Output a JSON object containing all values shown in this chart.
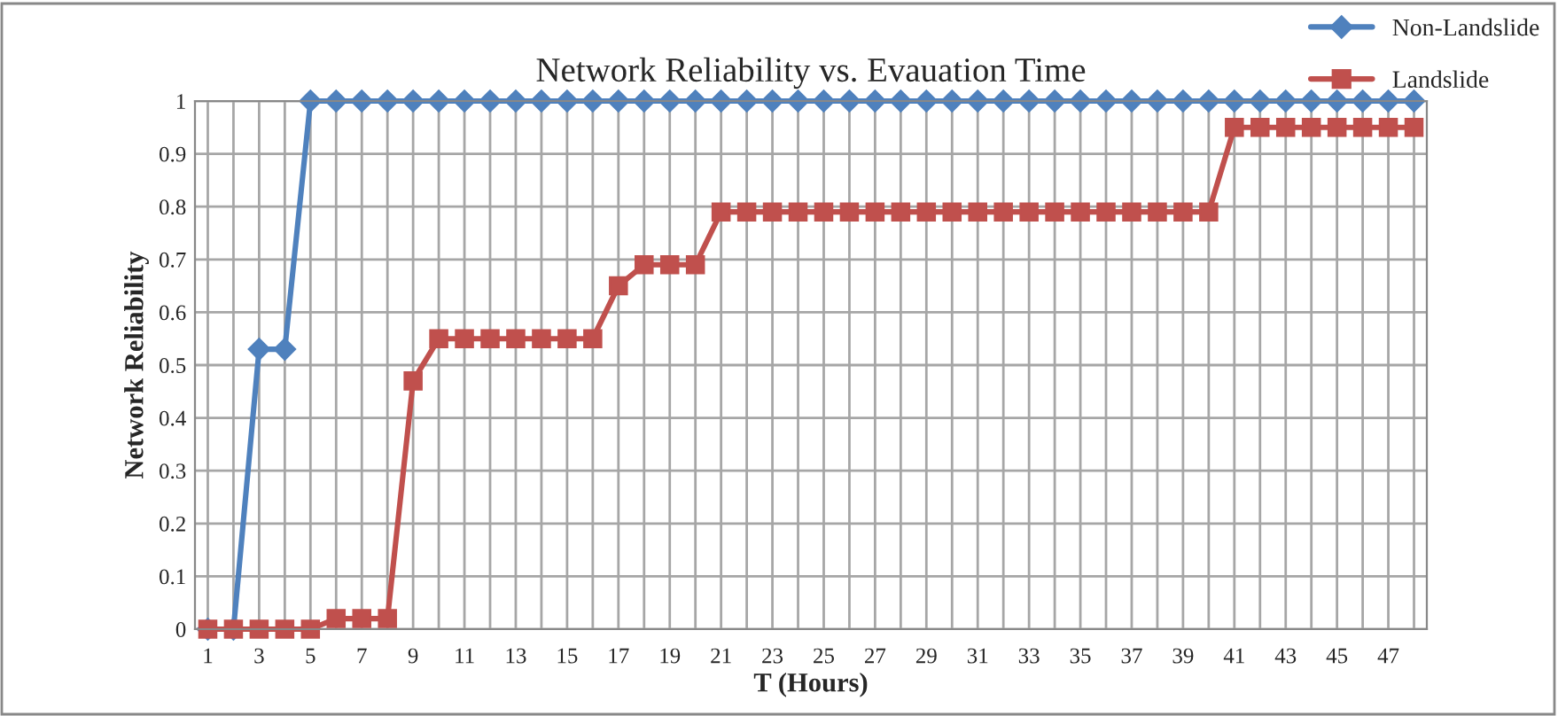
{
  "chart_data": {
    "type": "line",
    "title": "Network Reliability vs. Evauation Time",
    "xlabel": "T (Hours)",
    "ylabel": "Network Reliability",
    "categories": [
      "1",
      null,
      "3",
      null,
      "5",
      null,
      "7",
      null,
      "9",
      null,
      "11",
      null,
      "13",
      null,
      "15",
      null,
      "17",
      null,
      "19",
      null,
      "21",
      null,
      "23",
      null,
      "25",
      null,
      "27",
      null,
      "29",
      null,
      "31",
      null,
      "33",
      null,
      "35",
      null,
      "37",
      null,
      "39",
      null,
      "41",
      null,
      "43",
      null,
      "45",
      null,
      "47",
      null
    ],
    "series": [
      {
        "name": "Non-Landslide",
        "color": "#4f81bd",
        "marker": "diamond",
        "values": [
          0,
          0,
          0.53,
          0.53,
          1,
          1,
          1,
          1,
          1,
          1,
          1,
          1,
          1,
          1,
          1,
          1,
          1,
          1,
          1,
          1,
          1,
          1,
          1,
          1,
          1,
          1,
          1,
          1,
          1,
          1,
          1,
          1,
          1,
          1,
          1,
          1,
          1,
          1,
          1,
          1,
          1,
          1,
          1,
          1,
          1,
          1,
          1,
          1
        ]
      },
      {
        "name": "Landslide",
        "color": "#c0504d",
        "marker": "square",
        "values": [
          0,
          0,
          0,
          0,
          0,
          0.02,
          0.02,
          0.02,
          0.47,
          0.55,
          0.55,
          0.55,
          0.55,
          0.55,
          0.55,
          0.55,
          0.65,
          0.69,
          0.69,
          0.69,
          0.79,
          0.79,
          0.79,
          0.79,
          0.79,
          0.79,
          0.79,
          0.79,
          0.79,
          0.79,
          0.79,
          0.79,
          0.79,
          0.79,
          0.79,
          0.79,
          0.79,
          0.79,
          0.79,
          0.79,
          0.95,
          0.95,
          0.95,
          0.95,
          0.95,
          0.95,
          0.95,
          0.95
        ]
      }
    ],
    "ylim": [
      0,
      1
    ],
    "yticks": [
      0,
      0.1,
      0.2,
      0.3,
      0.4,
      0.5,
      0.6,
      0.7,
      0.8,
      0.9,
      1
    ],
    "grid": true,
    "legend": "top right",
    "line_style": "solid"
  }
}
